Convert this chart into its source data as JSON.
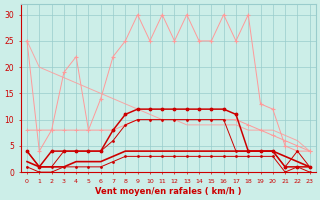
{
  "x": [
    0,
    1,
    2,
    3,
    4,
    5,
    6,
    7,
    8,
    9,
    10,
    11,
    12,
    13,
    14,
    15,
    16,
    17,
    18,
    19,
    20,
    21,
    22,
    23
  ],
  "rafales_light": [
    25,
    4,
    8,
    19,
    22,
    8,
    14,
    22,
    25,
    30,
    25,
    30,
    25,
    30,
    25,
    25,
    30,
    25,
    30,
    13,
    12,
    5,
    4,
    4
  ],
  "diag_light": [
    25,
    20,
    19,
    18,
    17,
    16,
    15,
    14,
    13,
    12,
    11,
    10,
    10,
    9,
    9,
    9,
    9,
    9,
    8,
    8,
    8,
    7,
    6,
    4
  ],
  "med_light": [
    8,
    8,
    8,
    8,
    8,
    8,
    8,
    8,
    9,
    10,
    10,
    10,
    10,
    10,
    10,
    10,
    10,
    10,
    9,
    8,
    7,
    6,
    5,
    4
  ],
  "avg_dark_high": [
    4,
    1,
    4,
    4,
    4,
    4,
    4,
    8,
    11,
    12,
    12,
    12,
    12,
    12,
    12,
    12,
    12,
    11,
    4,
    4,
    4,
    1,
    1,
    1
  ],
  "avg_dark_mid": [
    4,
    1,
    1,
    4,
    4,
    4,
    4,
    6,
    9,
    10,
    10,
    10,
    10,
    10,
    10,
    10,
    10,
    4,
    4,
    4,
    4,
    1,
    4,
    1
  ],
  "low_dark": [
    1,
    0,
    0,
    1,
    1,
    1,
    1,
    2,
    3,
    3,
    3,
    3,
    3,
    3,
    3,
    3,
    3,
    3,
    3,
    3,
    3,
    0,
    1,
    0
  ],
  "smooth_dark": [
    2,
    1,
    1,
    1,
    2,
    2,
    2,
    3,
    4,
    4,
    4,
    4,
    4,
    4,
    4,
    4,
    4,
    4,
    4,
    4,
    4,
    3,
    2,
    1
  ],
  "color_light": "#ff9999",
  "color_dark": "#cc0000",
  "bg_color": "#cceee8",
  "grid_color": "#99cccc",
  "xlabel": "Vent moyen/en rafales ( km/h )",
  "ylim": [
    0,
    32
  ],
  "xlim": [
    -0.5,
    23.5
  ],
  "yticks": [
    0,
    5,
    10,
    15,
    20,
    25,
    30
  ],
  "xticks": [
    0,
    1,
    2,
    3,
    4,
    5,
    6,
    7,
    8,
    9,
    10,
    11,
    12,
    13,
    14,
    15,
    16,
    17,
    18,
    19,
    20,
    21,
    22,
    23
  ]
}
